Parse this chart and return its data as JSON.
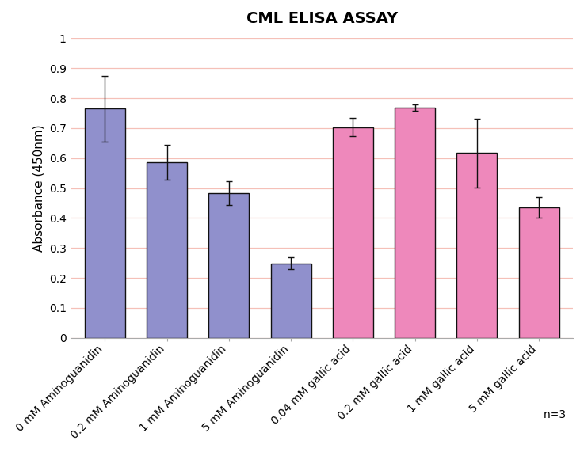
{
  "title": "CML ELISA ASSAY",
  "ylabel": "Absorbance (450nm)",
  "categories": [
    "0 mM Aminoguanidin",
    "0.2 mM Aminoguanidin",
    "1 mM Aminoguanidin",
    "5 mM Aminoguanidin",
    "0.04 mM gallic acid",
    "0.2 mM gallic acid",
    "1 mM gallic acid",
    "5 mM gallic acid"
  ],
  "values": [
    0.765,
    0.585,
    0.482,
    0.248,
    0.703,
    0.768,
    0.617,
    0.435
  ],
  "errors": [
    0.11,
    0.058,
    0.04,
    0.02,
    0.03,
    0.01,
    0.115,
    0.035
  ],
  "bar_colors": [
    "#9090cc",
    "#9090cc",
    "#9090cc",
    "#9090cc",
    "#ee88bb",
    "#ee88bb",
    "#ee88bb",
    "#ee88bb"
  ],
  "bar_edgecolor": "#111111",
  "ylim": [
    0,
    1.0
  ],
  "yticks": [
    0,
    0.1,
    0.2,
    0.3,
    0.4,
    0.5,
    0.6,
    0.7,
    0.8,
    0.9,
    1
  ],
  "grid_color": "#f5c0b8",
  "grid_linewidth": 0.9,
  "annotation": "n=3",
  "title_fontsize": 14,
  "label_fontsize": 11,
  "tick_fontsize": 10,
  "annot_fontsize": 10,
  "bar_width": 0.65,
  "bg_color": "#ffffff",
  "ecolor": "#111111",
  "ecapsize": 3,
  "elinewidth": 1.0
}
